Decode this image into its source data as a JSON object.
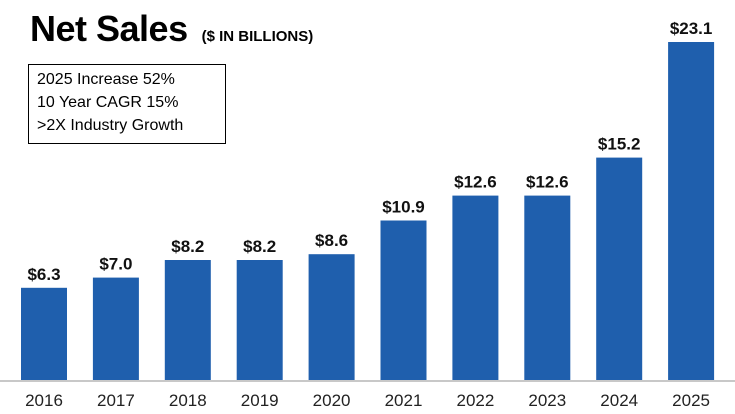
{
  "header": {
    "title": "Net Sales",
    "subtitle": "($ IN BILLIONS)"
  },
  "notes": [
    "2025 Increase 52%",
    "10 Year CAGR 15%",
    ">2X Industry Growth"
  ],
  "colors": {
    "bar": "#1f5fad",
    "axis": "#c8c8c8"
  },
  "chart_data": {
    "type": "bar",
    "title": "Net Sales",
    "subtitle": "($ IN BILLIONS)",
    "categories": [
      "2016",
      "2017",
      "2018",
      "2019",
      "2020",
      "2021",
      "2022",
      "2023",
      "2024",
      "2025"
    ],
    "values": [
      6.3,
      7.0,
      8.2,
      8.2,
      8.6,
      10.9,
      12.6,
      12.6,
      15.2,
      23.1
    ],
    "data_labels": [
      "$6.3",
      "$7.0",
      "$8.2",
      "$8.2",
      "$8.6",
      "$10.9",
      "$12.6",
      "$12.6",
      "$15.2",
      "$23.1"
    ],
    "xlabel": "",
    "ylabel": "",
    "ylim": [
      0,
      23.1
    ],
    "grid": false,
    "legend": "none"
  }
}
